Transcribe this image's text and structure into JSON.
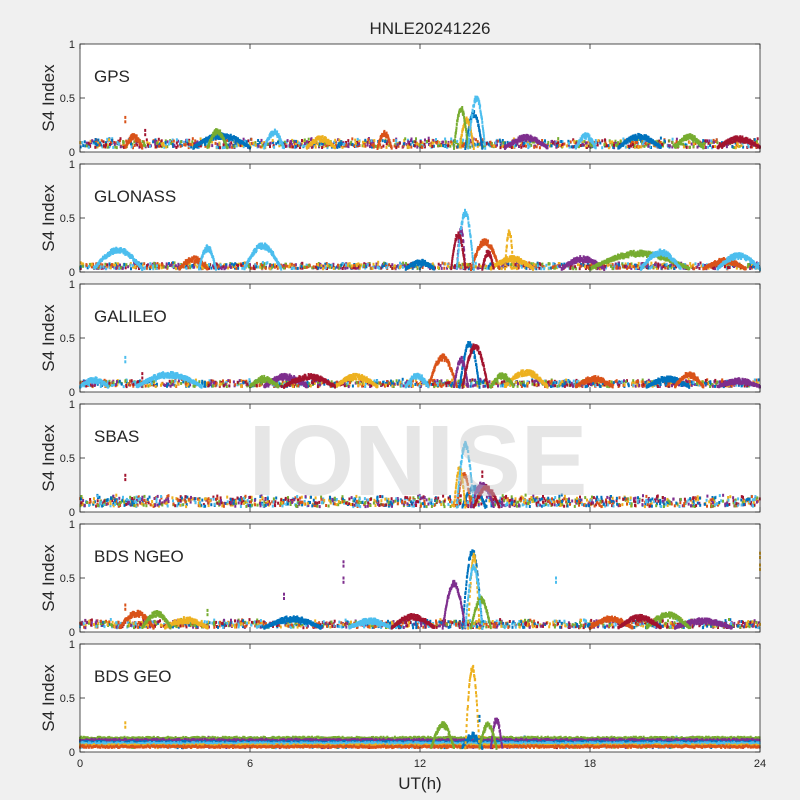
{
  "figure_title": "HNLE20241226",
  "watermark": "IONISE",
  "colors": {
    "background": "#f0f0f0",
    "axes_background": "#ffffff",
    "axis": "#262626",
    "palette": [
      "#0072bd",
      "#d95319",
      "#edb120",
      "#7e2f8e",
      "#77ac30",
      "#4dbeee",
      "#a2142f"
    ]
  },
  "chart_data": [
    {
      "type": "scatter",
      "panel_label": "GPS",
      "ylabel": "S4 Index",
      "xlim": [
        0,
        24
      ],
      "ylim": [
        0,
        1
      ],
      "xticks": [
        0,
        6,
        12,
        18,
        24
      ],
      "yticks": [
        0,
        0.5,
        1
      ],
      "xticklabels": [
        "",
        "",
        "",
        "",
        ""
      ],
      "yticklabels": [
        "0",
        "0.5",
        "1"
      ],
      "baseline_range": [
        0.04,
        0.13
      ],
      "series": [
        {
          "color": "#0072bd",
          "arcs": [
            [
              4,
              6,
              0.15
            ],
            [
              13.6,
              14.2,
              0.35
            ],
            [
              19,
              20.5,
              0.14
            ]
          ]
        },
        {
          "color": "#d95319",
          "arcs": [
            [
              1.6,
              2.2,
              0.14
            ],
            [
              10.5,
              11,
              0.17
            ]
          ]
        },
        {
          "color": "#edb120",
          "arcs": [
            [
              8,
              9,
              0.12
            ],
            [
              13.4,
              13.9,
              0.3
            ]
          ]
        },
        {
          "color": "#7e2f8e",
          "arcs": [
            [
              15,
              16.5,
              0.13
            ]
          ]
        },
        {
          "color": "#77ac30",
          "arcs": [
            [
              4.5,
              5.2,
              0.19
            ],
            [
              13.2,
              13.7,
              0.4
            ],
            [
              21,
              22,
              0.14
            ]
          ]
        },
        {
          "color": "#4dbeee",
          "arcs": [
            [
              6.5,
              7.2,
              0.18
            ],
            [
              13.7,
              14.3,
              0.5
            ],
            [
              17.5,
              18.2,
              0.15
            ]
          ]
        },
        {
          "color": "#a2142f",
          "arcs": [
            [
              22.5,
              24,
              0.12
            ]
          ]
        }
      ],
      "spikes": [
        {
          "x": 1.6,
          "y": 0.32,
          "color": "#d95319"
        },
        {
          "x": 2.3,
          "y": 0.2,
          "color": "#a2142f"
        }
      ]
    },
    {
      "type": "scatter",
      "panel_label": "GLONASS",
      "ylabel": "S4 Index",
      "xlim": [
        0,
        24
      ],
      "ylim": [
        0,
        1
      ],
      "xticks": [
        0,
        6,
        12,
        18,
        24
      ],
      "yticks": [
        0,
        0.5,
        1
      ],
      "xticklabels": [
        "",
        "",
        "",
        "",
        ""
      ],
      "yticklabels": [
        "0",
        "0.5",
        "1"
      ],
      "baseline_range": [
        0.03,
        0.09
      ],
      "series": [
        {
          "color": "#0072bd",
          "arcs": [
            [
              11.5,
              12.5,
              0.09
            ]
          ]
        },
        {
          "color": "#d95319",
          "arcs": [
            [
              13.8,
              14.8,
              0.28
            ],
            [
              3.5,
              4.5,
              0.12
            ],
            [
              22,
              23.5,
              0.1
            ]
          ]
        },
        {
          "color": "#edb120",
          "arcs": [
            [
              15,
              15.3,
              0.38
            ],
            [
              14.5,
              16,
              0.12
            ]
          ]
        },
        {
          "color": "#7e2f8e",
          "arcs": [
            [
              17,
              18.5,
              0.12
            ],
            [
              13.3,
              13.6,
              0.4
            ]
          ]
        },
        {
          "color": "#77ac30",
          "arcs": [
            [
              18,
              21.5,
              0.17
            ]
          ]
        },
        {
          "color": "#4dbeee",
          "arcs": [
            [
              0.5,
              2.2,
              0.2
            ],
            [
              4.2,
              4.8,
              0.22
            ],
            [
              5.8,
              7.1,
              0.24
            ],
            [
              13.3,
              13.9,
              0.55
            ],
            [
              19.8,
              21.2,
              0.18
            ],
            [
              22.5,
              24,
              0.15
            ]
          ]
        },
        {
          "color": "#a2142f",
          "arcs": [
            [
              13.1,
              13.6,
              0.35
            ],
            [
              14.2,
              14.6,
              0.18
            ]
          ]
        }
      ],
      "spikes": []
    },
    {
      "type": "scatter",
      "panel_label": "GALILEO",
      "ylabel": "S4 Index",
      "xlim": [
        0,
        24
      ],
      "ylim": [
        0,
        1
      ],
      "xticks": [
        0,
        6,
        12,
        18,
        24
      ],
      "yticks": [
        0,
        0.5,
        1
      ],
      "xticklabels": [
        "",
        "",
        "",
        "",
        ""
      ],
      "yticklabels": [
        "0",
        "0.5",
        "1"
      ],
      "baseline_range": [
        0.05,
        0.12
      ],
      "series": [
        {
          "color": "#0072bd",
          "arcs": [
            [
              13.4,
              14.1,
              0.45
            ],
            [
              20,
              21.5,
              0.12
            ]
          ]
        },
        {
          "color": "#d95319",
          "arcs": [
            [
              12.3,
              13.3,
              0.32
            ],
            [
              17.5,
              18.8,
              0.12
            ],
            [
              21,
              22,
              0.16
            ]
          ]
        },
        {
          "color": "#edb120",
          "arcs": [
            [
              15,
              16.5,
              0.18
            ],
            [
              9,
              10.5,
              0.14
            ]
          ]
        },
        {
          "color": "#7e2f8e",
          "arcs": [
            [
              6.5,
              8,
              0.14
            ],
            [
              13.2,
              13.7,
              0.3
            ],
            [
              22.5,
              24,
              0.1
            ]
          ]
        },
        {
          "color": "#77ac30",
          "arcs": [
            [
              6,
              7,
              0.12
            ],
            [
              14.5,
              15.3,
              0.15
            ]
          ]
        },
        {
          "color": "#4dbeee",
          "arcs": [
            [
              2,
              4.3,
              0.16
            ],
            [
              0,
              1,
              0.11
            ],
            [
              11.5,
              12.3,
              0.15
            ]
          ]
        },
        {
          "color": "#a2142f",
          "arcs": [
            [
              13.5,
              14.4,
              0.42
            ],
            [
              7.2,
              9,
              0.14
            ]
          ]
        }
      ],
      "spikes": [
        {
          "x": 1.6,
          "y": 0.32,
          "color": "#4dbeee"
        },
        {
          "x": 2.2,
          "y": 0.17,
          "color": "#a2142f"
        }
      ]
    },
    {
      "type": "scatter",
      "panel_label": "SBAS",
      "ylabel": "S4 Index",
      "xlim": [
        0,
        24
      ],
      "ylim": [
        0,
        1
      ],
      "xticks": [
        0,
        6,
        12,
        18,
        24
      ],
      "yticks": [
        0,
        0.5,
        1
      ],
      "xticklabels": [
        "",
        "",
        "",
        "",
        ""
      ],
      "yticklabels": [
        "0",
        "0.5",
        "1"
      ],
      "baseline_range": [
        0.05,
        0.16
      ],
      "series": [
        {
          "color": "#0072bd",
          "arcs": [
            [
              13.5,
              14.3,
              0.22
            ]
          ]
        },
        {
          "color": "#d95319",
          "arcs": [
            [
              13.3,
              13.8,
              0.35
            ]
          ]
        },
        {
          "color": "#edb120",
          "arcs": [
            [
              13.2,
              13.6,
              0.4
            ]
          ]
        },
        {
          "color": "#7e2f8e",
          "arcs": [
            [
              13.8,
              14.6,
              0.25
            ]
          ]
        },
        {
          "color": "#77ac30",
          "arcs": []
        },
        {
          "color": "#4dbeee",
          "arcs": [
            [
              13.3,
              13.9,
              0.62
            ]
          ]
        },
        {
          "color": "#a2142f",
          "arcs": [
            [
              13.9,
              14.8,
              0.22
            ]
          ]
        }
      ],
      "spikes": [
        {
          "x": 1.6,
          "y": 0.34,
          "color": "#a2142f"
        },
        {
          "x": 14.2,
          "y": 0.37,
          "color": "#a2142f"
        }
      ]
    },
    {
      "type": "scatter",
      "panel_label": "BDS NGEO",
      "ylabel": "S4 Index",
      "xlim": [
        0,
        24
      ],
      "ylim": [
        0,
        1
      ],
      "xticks": [
        0,
        6,
        12,
        18,
        24
      ],
      "yticks": [
        0,
        0.5,
        1
      ],
      "xticklabels": [
        "",
        "",
        "",
        "",
        ""
      ],
      "yticklabels": [
        "0",
        "0.5",
        "1"
      ],
      "baseline_range": [
        0.04,
        0.12
      ],
      "series": [
        {
          "color": "#0072bd",
          "arcs": [
            [
              13.5,
              14.2,
              0.75
            ],
            [
              6.5,
              8.5,
              0.12
            ]
          ]
        },
        {
          "color": "#d95319",
          "arcs": [
            [
              1.4,
              2.6,
              0.17
            ],
            [
              18,
              19.5,
              0.12
            ]
          ]
        },
        {
          "color": "#edb120",
          "arcs": [
            [
              13.7,
              14.1,
              0.7
            ],
            [
              3,
              4.5,
              0.11
            ]
          ]
        },
        {
          "color": "#7e2f8e",
          "arcs": [
            [
              12.8,
              13.6,
              0.45
            ],
            [
              21,
              23,
              0.1
            ]
          ]
        },
        {
          "color": "#77ac30",
          "arcs": [
            [
              13.8,
              14.5,
              0.3
            ],
            [
              2.2,
              3.2,
              0.17
            ],
            [
              20,
              21.5,
              0.16
            ]
          ]
        },
        {
          "color": "#4dbeee",
          "arcs": [
            [
              13.6,
              14.2,
              0.6
            ],
            [
              9.5,
              11,
              0.1
            ]
          ]
        },
        {
          "color": "#a2142f",
          "arcs": [
            [
              11,
              12.5,
              0.14
            ],
            [
              19,
              20.5,
              0.13
            ]
          ]
        }
      ],
      "spikes": [
        {
          "x": 9.3,
          "y": 0.65,
          "color": "#7e2f8e"
        },
        {
          "x": 9.3,
          "y": 0.5,
          "color": "#7e2f8e"
        },
        {
          "x": 7.2,
          "y": 0.35,
          "color": "#7e2f8e"
        },
        {
          "x": 16.8,
          "y": 0.5,
          "color": "#4dbeee"
        },
        {
          "x": 24,
          "y": 0.73,
          "color": "#edb120"
        },
        {
          "x": 24,
          "y": 0.62,
          "color": "#edb120"
        },
        {
          "x": 1.6,
          "y": 0.25,
          "color": "#d95319"
        },
        {
          "x": 4.5,
          "y": 0.2,
          "color": "#77ac30"
        }
      ]
    },
    {
      "type": "scatter",
      "panel_label": "BDS GEO",
      "ylabel": "S4 Index",
      "xlim": [
        0,
        24
      ],
      "ylim": [
        0,
        1
      ],
      "xticks": [
        0,
        6,
        12,
        18,
        24
      ],
      "yticks": [
        0,
        0.5,
        1
      ],
      "xticklabels": [
        "0",
        "6",
        "12",
        "18",
        "24"
      ],
      "yticklabels": [
        "0",
        "0.5",
        "1"
      ],
      "xlabel": "UT(h)",
      "baseline_range": [
        0.04,
        0.14
      ],
      "geo_tracks": [
        {
          "color": "#77ac30",
          "y": 0.13
        },
        {
          "color": "#7e2f8e",
          "y": 0.11
        },
        {
          "color": "#0072bd",
          "y": 0.09
        },
        {
          "color": "#4dbeee",
          "y": 0.08
        },
        {
          "color": "#edb120",
          "y": 0.06
        },
        {
          "color": "#d95319",
          "y": 0.05
        }
      ],
      "series": [
        {
          "color": "#0072bd",
          "arcs": [
            [
              13.5,
              14.2,
              0.15
            ]
          ]
        },
        {
          "color": "#d95319",
          "arcs": []
        },
        {
          "color": "#edb120",
          "arcs": [
            [
              13.6,
              14.1,
              0.78
            ]
          ]
        },
        {
          "color": "#7e2f8e",
          "arcs": [
            [
              14.5,
              14.9,
              0.3
            ]
          ]
        },
        {
          "color": "#77ac30",
          "arcs": [
            [
              12.4,
              13.2,
              0.25
            ],
            [
              14.1,
              14.7,
              0.25
            ]
          ]
        },
        {
          "color": "#4dbeee",
          "arcs": []
        },
        {
          "color": "#a2142f",
          "arcs": []
        }
      ],
      "spikes": [
        {
          "x": 1.6,
          "y": 0.27,
          "color": "#edb120"
        },
        {
          "x": 14.1,
          "y": 0.33,
          "color": "#0072bd"
        }
      ]
    }
  ]
}
